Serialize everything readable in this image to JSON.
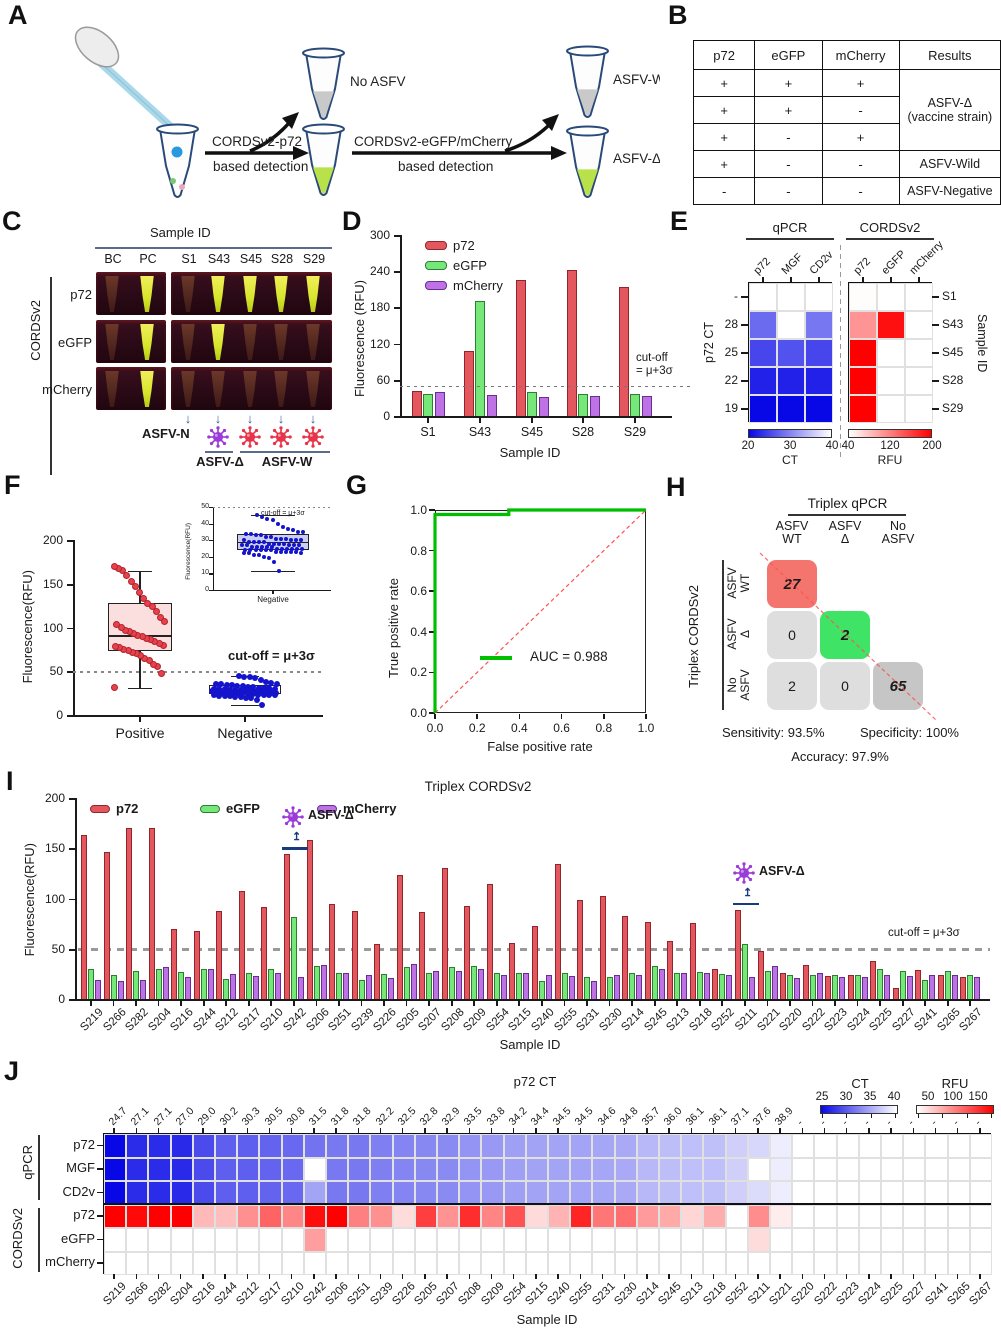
{
  "panel_labels": [
    "A",
    "B",
    "C",
    "D",
    "E",
    "F",
    "G",
    "H",
    "I",
    "J"
  ],
  "colors": {
    "bar_red": "#E4575E",
    "bar_red_border": "#8E262C",
    "bar_green": "#76E87A",
    "bar_green_border": "#2E7D33",
    "bar_purple": "#BE72E6",
    "bar_purple_border": "#66308F",
    "roc_green": "#00BE00",
    "diag_red": "#FF5252",
    "heat_blue": "#0808E6",
    "heat_red": "#FF0000",
    "point_red": "#E8414B",
    "point_blue": "#1414CC",
    "box_pink": "#FBDEDE",
    "box_blue": "#C9CEF2",
    "cell_red": "#F4756D",
    "cell_green": "#3FE466",
    "cell_gray": "#DEDEDE",
    "cell_dark_gray": "#C6C6C6",
    "virus_purple": "#9B3BD9",
    "virus_red": "#E8344A",
    "arrow_blue": "#3A5AA0"
  },
  "panel_a": {
    "arrow1_line1": "CORDSv2-p72",
    "arrow1_line2": "based detection",
    "arrow2_line1": "CORDSv2-eGFP/mCherry",
    "arrow2_line2": "based detection",
    "no_asfv": "No ASFV",
    "asfv_w": "ASFV-W",
    "asfv_d": "ASFV-Δ"
  },
  "panel_b": {
    "headers": [
      "p72",
      "eGFP",
      "mCherry",
      "Results"
    ],
    "rows": [
      [
        "+",
        "+",
        "+"
      ],
      [
        "+",
        "+",
        "-"
      ],
      [
        "+",
        "-",
        "+"
      ],
      [
        "+",
        "-",
        "-"
      ],
      [
        "-",
        "-",
        "-"
      ]
    ],
    "results": [
      {
        "label": "ASFV-Δ\n(vaccine strain)",
        "span": 3
      },
      {
        "label": "ASFV-Wild",
        "span": 1
      },
      {
        "label": "ASFV-Negative",
        "span": 1
      }
    ]
  },
  "panel_c": {
    "title": "Sample ID",
    "row_group": "CORDSv2",
    "rows": [
      "p72",
      "eGFP",
      "mCherry"
    ],
    "columns": [
      "BC",
      "PC",
      "S1",
      "S43",
      "S45",
      "S28",
      "S29"
    ],
    "bright": {
      "p72": [
        0,
        1,
        0,
        1,
        1,
        1,
        1
      ],
      "eGFP": [
        0,
        1,
        0,
        1,
        0,
        0,
        0
      ],
      "mCherry": [
        0,
        1,
        0,
        0,
        0,
        0,
        0
      ]
    },
    "neg_label": "ASFV-N",
    "delta_label": "ASFV-Δ",
    "wild_label": "ASFV-W"
  },
  "chart_data": [
    {
      "id": "D",
      "type": "bar",
      "ylabel": "Fluorescence (RFU)",
      "xlabel": "Sample ID",
      "ylim": [
        0,
        300
      ],
      "yticks": [
        0,
        60,
        120,
        180,
        240,
        300
      ],
      "categories": [
        "S1",
        "S43",
        "S45",
        "S28",
        "S29"
      ],
      "series": [
        {
          "name": "p72",
          "values": [
            42,
            107,
            226,
            242,
            214
          ]
        },
        {
          "name": "eGFP",
          "values": [
            37,
            190,
            40,
            37,
            36
          ]
        },
        {
          "name": "mCherry",
          "values": [
            40,
            35,
            32,
            33,
            33
          ]
        }
      ],
      "cutoff": 50,
      "cutoff_label_line1": "cut-off",
      "cutoff_label_line2": "= μ+3σ"
    },
    {
      "id": "E",
      "type": "heatmap",
      "col_groups": [
        "qPCR",
        "CORDSv2"
      ],
      "qpcr_cols": [
        "p72",
        "MGF",
        "CD2v"
      ],
      "cords_cols": [
        "p72",
        "eGFP",
        "mCherry"
      ],
      "left_axis": "p72 CT",
      "right_axis": "Sample ID",
      "row_ct_labels": [
        "-",
        "28",
        "25",
        "22",
        "19"
      ],
      "sample_ids": [
        "S1",
        "S43",
        "S45",
        "S28",
        "S29"
      ],
      "qpcr_ct": [
        [
          null,
          null,
          null
        ],
        [
          28,
          null,
          29
        ],
        [
          25,
          26,
          25
        ],
        [
          22,
          22,
          22
        ],
        [
          19,
          19,
          19
        ]
      ],
      "cords_rfu": [
        [
          42,
          37,
          40
        ],
        [
          107,
          190,
          35
        ],
        [
          226,
          40,
          32
        ],
        [
          242,
          37,
          33
        ],
        [
          214,
          36,
          33
        ]
      ],
      "ct_scale": {
        "min": 20,
        "max": 40,
        "ticks": [
          20,
          30,
          40
        ],
        "label": "CT"
      },
      "rfu_scale": {
        "min": 40,
        "max": 200,
        "ticks": [
          40,
          120,
          200
        ],
        "label": "RFU"
      }
    },
    {
      "id": "F",
      "type": "box-scatter",
      "ylabel": "Fluorescence(RFU)",
      "ylim": [
        0,
        200
      ],
      "yticks": [
        0,
        50,
        100,
        150,
        200
      ],
      "categories": [
        "Positive",
        "Negative"
      ],
      "cutoff": 50,
      "cutoff_label": "cut-off = μ+3σ",
      "positive": {
        "points": [
          31,
          48,
          55,
          58,
          62,
          65,
          68,
          70,
          72,
          74,
          75,
          77,
          78,
          80,
          82,
          84,
          86,
          88,
          90,
          91,
          93,
          95,
          97,
          100,
          103,
          107,
          112,
          118,
          124,
          128,
          133,
          140,
          147,
          153,
          160,
          165,
          168,
          170
        ],
        "box": {
          "lo": 31,
          "q1": 73,
          "median": 91,
          "q3": 128,
          "hi": 165
        }
      },
      "negative": {
        "points": [
          11.5,
          17,
          19,
          20,
          21,
          21,
          22,
          22,
          22,
          23,
          23,
          23,
          23,
          23,
          24,
          24,
          24,
          24,
          24,
          24,
          25,
          25,
          25,
          25,
          25,
          25,
          26,
          26,
          26,
          26,
          26,
          27,
          27,
          27,
          27,
          27,
          28,
          28,
          28,
          28,
          29,
          29,
          29,
          29,
          30,
          30,
          30,
          30,
          31,
          31,
          31,
          32,
          32,
          33,
          33,
          34,
          34,
          35,
          35,
          36,
          37,
          38,
          40,
          42,
          43,
          44,
          45
        ],
        "box": {
          "lo": 11.5,
          "q1": 24,
          "median": 29,
          "q3": 34,
          "hi": 45
        }
      },
      "inset": {
        "ylim": [
          0,
          50
        ],
        "yticks": [
          0,
          10,
          20,
          30,
          40,
          50
        ],
        "cutoff": 50,
        "cutoff_label": "cut-off = μ+3σ",
        "ylabel": "Fluorescence(RFU)",
        "category": "Negative"
      }
    },
    {
      "id": "G",
      "type": "line-roc",
      "xlabel": "False positive rate",
      "ylabel": "True positive rate",
      "xticks": [
        "0.0",
        "0.2",
        "0.4",
        "0.6",
        "0.8",
        "1.0"
      ],
      "yticks": [
        "0.0",
        "0.2",
        "0.4",
        "0.6",
        "0.8",
        "1.0"
      ],
      "curve": [
        [
          0,
          0
        ],
        [
          0,
          0.978
        ],
        [
          0.35,
          0.978
        ],
        [
          0.35,
          1
        ],
        [
          1,
          1
        ]
      ],
      "auc_label": "AUC = 0.988"
    },
    {
      "id": "H",
      "type": "confusion-matrix",
      "col_group": "Triplex qPCR",
      "row_group": "Triplex CORDSv2",
      "col_labels": [
        [
          "ASFV",
          "WT"
        ],
        [
          "ASFV",
          "Δ"
        ],
        [
          "No",
          "ASFV"
        ]
      ],
      "row_labels": [
        [
          "ASFV",
          "WT"
        ],
        [
          "ASFV",
          "Δ"
        ],
        [
          "No",
          "ASFV"
        ]
      ],
      "cells": [
        [
          27,
          null,
          null
        ],
        [
          0,
          2,
          null
        ],
        [
          2,
          0,
          65
        ]
      ],
      "sensitivity": "Sensitivity: 93.5%",
      "specificity": "Specificity: 100%",
      "accuracy": "Accuracy: 97.9%"
    },
    {
      "id": "I",
      "type": "bar",
      "title": "Triplex CORDSv2",
      "ylabel": "Fluorescence(RFU)",
      "xlabel": "Sample ID",
      "ylim": [
        0,
        200
      ],
      "yticks": [
        0,
        50,
        100,
        150,
        200
      ],
      "cutoff": 50,
      "cutoff_label": "cut-off = μ+3σ",
      "categories": [
        "S219",
        "S266",
        "S282",
        "S204",
        "S216",
        "S244",
        "S212",
        "S217",
        "S210",
        "S242",
        "S206",
        "S251",
        "S239",
        "S226",
        "S205",
        "S207",
        "S208",
        "S209",
        "S254",
        "S215",
        "S240",
        "S255",
        "S231",
        "S230",
        "S214",
        "S245",
        "S213",
        "S218",
        "S252",
        "S211",
        "S221",
        "S220",
        "S222",
        "S223",
        "S224",
        "S225",
        "S227",
        "S241",
        "S265",
        "S267"
      ],
      "series": [
        {
          "name": "p72",
          "values": [
            163,
            146,
            170,
            170,
            70,
            68,
            88,
            107,
            92,
            144,
            158,
            95,
            88,
            55,
            123,
            87,
            130,
            93,
            114,
            56,
            73,
            134,
            99,
            102,
            83,
            77,
            58,
            76,
            30,
            89,
            48,
            26,
            34,
            23,
            24,
            38,
            11,
            29,
            24,
            22
          ]
        },
        {
          "name": "eGFP",
          "values": [
            30,
            24,
            28,
            30,
            27,
            30,
            20,
            26,
            30,
            82,
            33,
            26,
            19,
            25,
            32,
            26,
            32,
            33,
            26,
            26,
            18,
            26,
            22,
            22,
            26,
            33,
            26,
            27,
            25,
            55,
            28,
            24,
            24,
            24,
            24,
            30,
            28,
            19,
            28,
            24
          ]
        },
        {
          "name": "mCherry",
          "values": [
            19,
            18,
            19,
            32,
            22,
            30,
            25,
            23,
            26,
            22,
            34,
            26,
            24,
            21,
            35,
            28,
            28,
            30,
            24,
            26,
            24,
            23,
            18,
            24,
            24,
            30,
            26,
            26,
            24,
            22,
            33,
            21,
            26,
            22,
            22,
            24,
            23,
            24,
            24,
            22
          ]
        }
      ],
      "annotations": [
        {
          "sample": "S242",
          "label": "ASFV-Δ"
        },
        {
          "sample": "S211",
          "label": "ASFV-Δ"
        }
      ]
    },
    {
      "id": "J",
      "type": "heatmap",
      "top_axis": "p72 CT",
      "xlabel": "Sample ID",
      "row_groups": [
        {
          "label": "qPCR",
          "rows": [
            "p72",
            "MGF",
            "CD2v"
          ]
        },
        {
          "label": "CORDSv2",
          "rows": [
            "p72",
            "eGFP",
            "mCherry"
          ]
        }
      ],
      "ct_labels": [
        "24.7",
        "27.1",
        "27.1",
        "27.0",
        "29.0",
        "30.2",
        "30.3",
        "30.5",
        "30.8",
        "31.5",
        "31.8",
        "31.8",
        "32.2",
        "32.5",
        "32.8",
        "32.9",
        "33.5",
        "33.8",
        "34.2",
        "34.4",
        "34.5",
        "34.5",
        "34.6",
        "34.8",
        "35.7",
        "36.0",
        "36.1",
        "36.1",
        "37.1",
        "37.6",
        "38.9",
        "-",
        "-",
        "-",
        "-",
        "-",
        "-",
        "-",
        "-",
        "-"
      ],
      "qpcr_p72_ct": [
        24.7,
        27.1,
        27.1,
        27.0,
        29.0,
        30.2,
        30.3,
        30.5,
        30.8,
        31.5,
        31.8,
        31.8,
        32.2,
        32.5,
        32.8,
        32.9,
        33.5,
        33.8,
        34.2,
        34.4,
        34.5,
        34.5,
        34.6,
        34.8,
        35.7,
        36.0,
        36.1,
        36.1,
        37.1,
        37.6,
        38.9,
        null,
        null,
        null,
        null,
        null,
        null,
        null,
        null,
        null
      ],
      "qpcr_mgf_ct": [
        24.7,
        27.1,
        27.1,
        27.0,
        29.0,
        30.2,
        30.3,
        30.5,
        30.8,
        null,
        31.8,
        31.8,
        32.2,
        32.5,
        32.8,
        32.9,
        33.5,
        33.8,
        34.2,
        34.4,
        34.5,
        34.5,
        34.6,
        34.8,
        35.7,
        36.0,
        36.1,
        36.1,
        37.1,
        null,
        38.9,
        null,
        null,
        null,
        null,
        null,
        null,
        null,
        null,
        null
      ],
      "qpcr_cd2v_ct": [
        24.7,
        27.1,
        27.1,
        27.0,
        29.0,
        30.2,
        30.3,
        30.5,
        30.8,
        34.5,
        31.8,
        31.8,
        32.2,
        32.5,
        32.8,
        32.9,
        33.5,
        33.8,
        34.2,
        34.4,
        34.5,
        34.5,
        34.6,
        34.8,
        35.7,
        36.0,
        36.1,
        36.1,
        37.1,
        37.8,
        38.9,
        null,
        null,
        null,
        null,
        null,
        null,
        null,
        null,
        null
      ],
      "ct_legend": {
        "label": "CT",
        "ticks": [
          "25",
          "30",
          "35",
          "40"
        ],
        "min": 25,
        "max": 40
      },
      "rfu_legend": {
        "label": "RFU",
        "ticks": [
          "50",
          "100",
          "150"
        ],
        "min": 40,
        "max": 150
      }
    }
  ]
}
